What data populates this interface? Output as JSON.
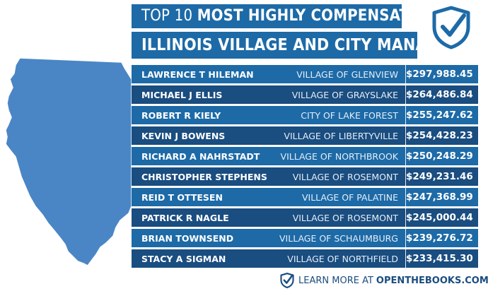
{
  "header": {
    "line1_prefix": "TOP 10",
    "line1_bold": "MOST HIGHLY COMPENSATED",
    "line2": "ILLINOIS VILLAGE AND CITY MANAGERS"
  },
  "rows": [
    {
      "name": "LAWRENCE T HILEMAN",
      "entity": "VILLAGE OF GLENVIEW",
      "amount": "$297,988.45"
    },
    {
      "name": "MICHAEL J ELLIS",
      "entity": "VILLAGE OF GRAYSLAKE",
      "amount": "$264,486.84"
    },
    {
      "name": "ROBERT R KIELY",
      "entity": "CITY OF LAKE FOREST",
      "amount": "$255,247.62"
    },
    {
      "name": "KEVIN J BOWENS",
      "entity": "VILLAGE OF LIBERTYVILLE",
      "amount": "$254,428.23"
    },
    {
      "name": "RICHARD A NAHRSTADT",
      "entity": "VILLAGE OF NORTHBROOK",
      "amount": "$250,248.29"
    },
    {
      "name": "CHRISTOPHER STEPHENS",
      "entity": "VILLAGE OF ROSEMONT",
      "amount": "$249,231.46"
    },
    {
      "name": "REID T OTTESEN",
      "entity": "VILLAGE OF PALATINE",
      "amount": "$247,368.99"
    },
    {
      "name": "PATRICK R NAGLE",
      "entity": "VILLAGE OF ROSEMONT",
      "amount": "$245,000.44"
    },
    {
      "name": "BRIAN TOWNSEND",
      "entity": "VILLAGE OF SCHAUMBURG",
      "amount": "$239,276.72"
    },
    {
      "name": "STACY A SIGMAN",
      "entity": "VILLAGE OF NORTHFIELD",
      "amount": "$233,415.30"
    }
  ],
  "footer": {
    "learn": "LEARN MORE AT",
    "site": "OPENTHEBOOKS.COM"
  },
  "colors": {
    "row_light": "#1d6aa7",
    "row_dark": "#1a4d80",
    "map": "#4a86c5"
  },
  "icons": {
    "logo": "shield-check-icon",
    "map": "illinois-map",
    "footer": "shield-check-icon"
  }
}
